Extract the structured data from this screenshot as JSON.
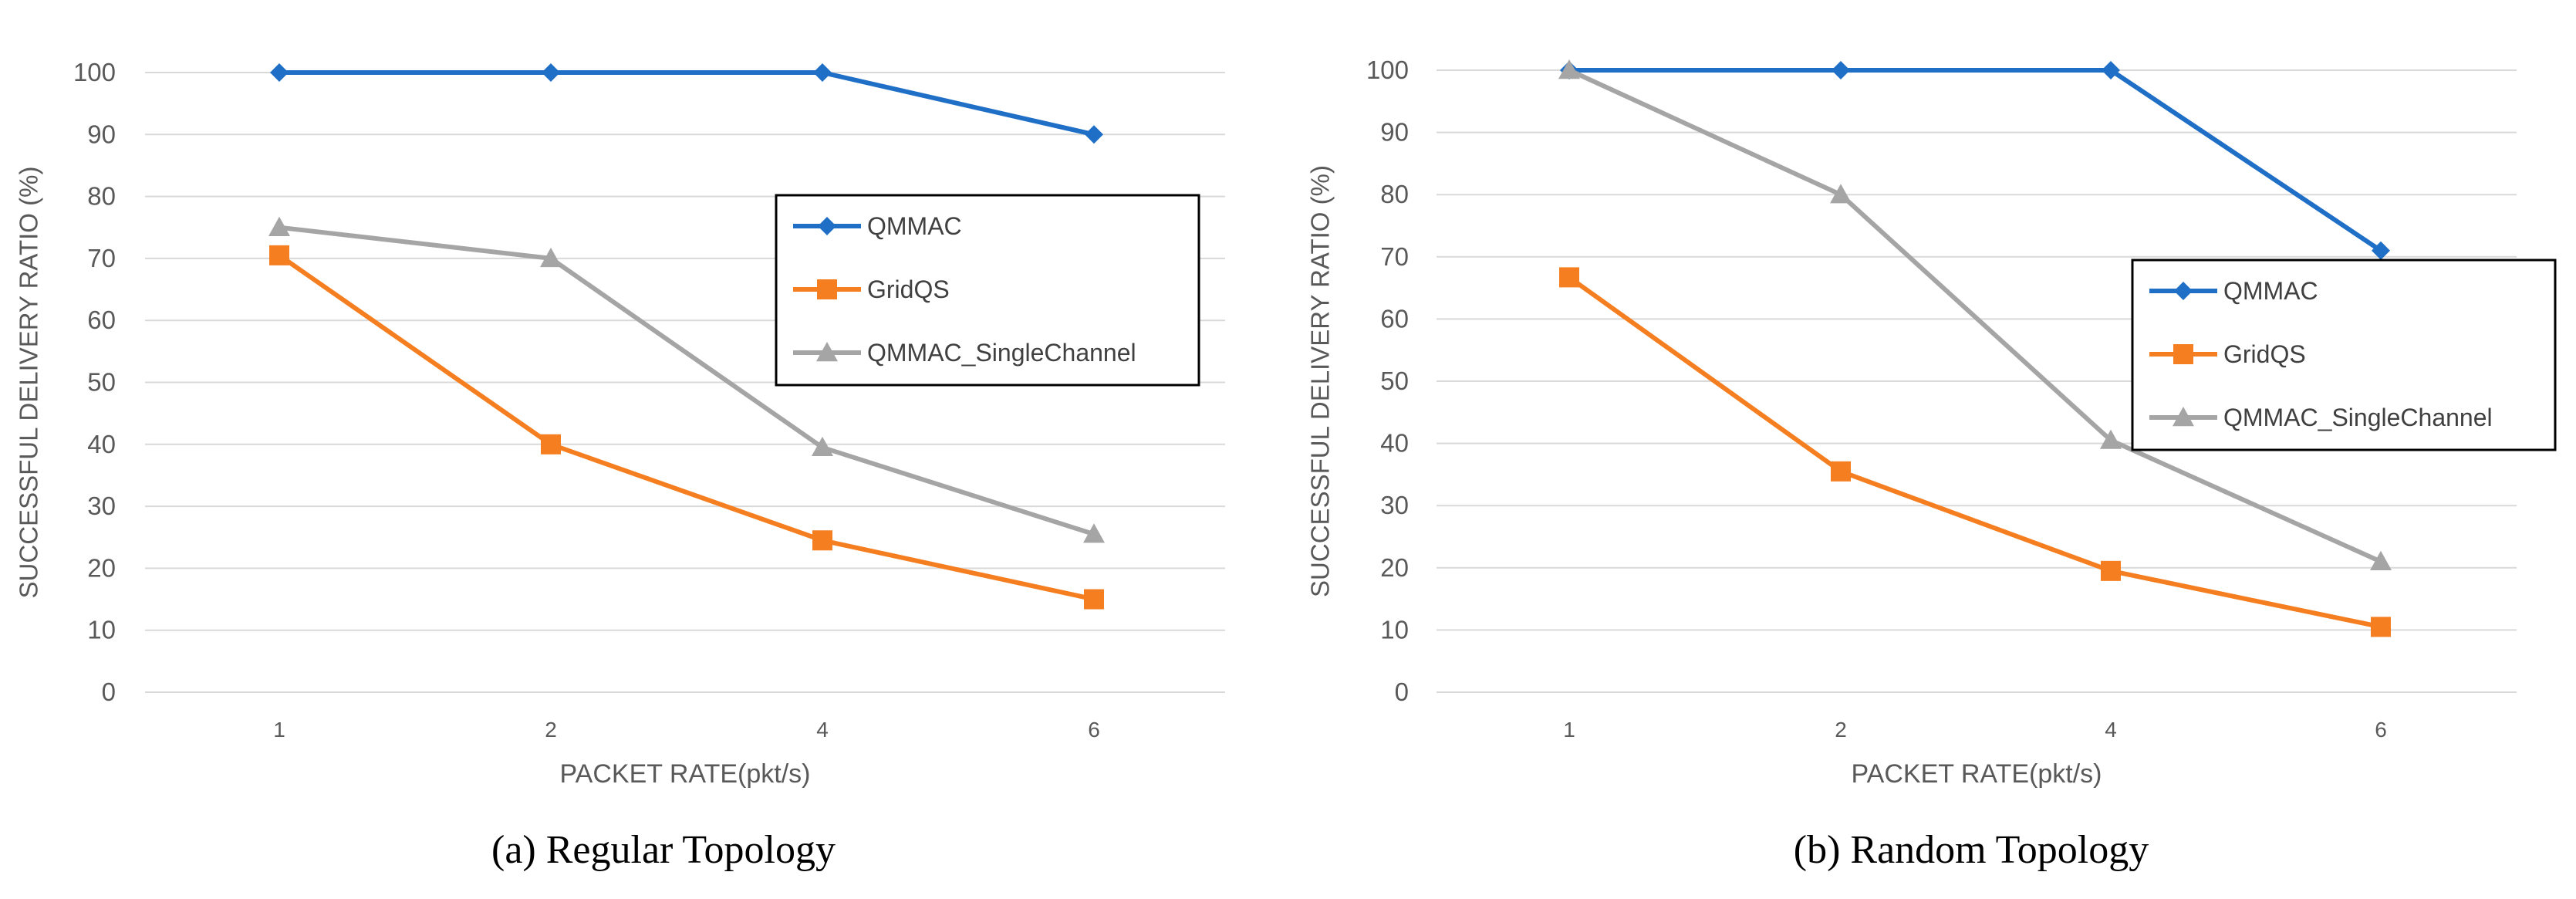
{
  "colors": {
    "qmmac": "#1F6FC7",
    "gridqs": "#F57E20",
    "single": "#A5A5A5",
    "grid": "#D9D9D9",
    "axis_text": "#595959",
    "caption": "#000000"
  },
  "chart_data": [
    {
      "type": "line",
      "caption": "(a)  Regular Topology",
      "categories": [
        "1",
        "2",
        "4",
        "6"
      ],
      "xlabel": "PACKET RATE(pkt/s)",
      "ylabel": "SUCCESSFUL DELIVERY RATIO (%)",
      "ylim": [
        0,
        100
      ],
      "yticks": [
        "0",
        "10",
        "20",
        "30",
        "40",
        "50",
        "60",
        "70",
        "80",
        "90",
        "100"
      ],
      "grid": true,
      "legend_position": "right-center",
      "series": [
        {
          "name": "QMMAC",
          "marker": "diamond",
          "color_key": "qmmac",
          "values": [
            100,
            100,
            100,
            90
          ]
        },
        {
          "name": "GridQS",
          "marker": "square",
          "color_key": "gridqs",
          "values": [
            70.5,
            40,
            24.5,
            15
          ]
        },
        {
          "name": "QMMAC_SingleChannel",
          "marker": "triangle",
          "color_key": "single",
          "values": [
            75,
            70,
            39.5,
            25.5
          ]
        }
      ]
    },
    {
      "type": "line",
      "caption": "(b)  Random Topology",
      "categories": [
        "1",
        "2",
        "4",
        "6"
      ],
      "xlabel": "PACKET RATE(pkt/s)",
      "ylabel": "SUCCESSFUL DELIVERY RATIO (%)",
      "ylim": [
        0,
        100
      ],
      "yticks": [
        "0",
        "10",
        "20",
        "30",
        "40",
        "50",
        "60",
        "70",
        "80",
        "90",
        "100"
      ],
      "grid": true,
      "legend_position": "right-center",
      "series": [
        {
          "name": "QMMAC",
          "marker": "diamond",
          "color_key": "qmmac",
          "values": [
            100,
            100,
            100,
            71
          ]
        },
        {
          "name": "GridQS",
          "marker": "square",
          "color_key": "gridqs",
          "values": [
            66.7,
            35.5,
            19.5,
            10.5
          ]
        },
        {
          "name": "QMMAC_SingleChannel",
          "marker": "triangle",
          "color_key": "single",
          "values": [
            100,
            80,
            40.5,
            21
          ]
        }
      ]
    }
  ]
}
